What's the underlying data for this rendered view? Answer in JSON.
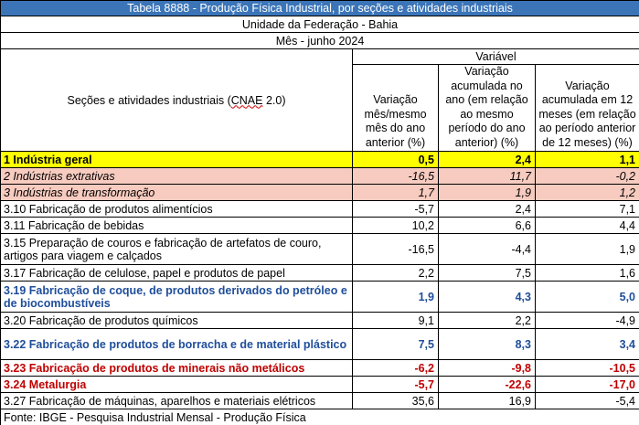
{
  "table": {
    "title": "Tabela 8888 - Produção Física Industrial, por seções e atividades industriais",
    "unit": "Unidade da Federação - Bahia",
    "period": "Mês - junho 2024",
    "row_header": "Seções e atividades industriais (",
    "row_header_abbr": "CNAE",
    "row_header_tail": " 2.0)",
    "variable_label": "Variável",
    "columns": [
      "Variação mês/mesmo mês do ano anterior (%)",
      "Variação acumulada no ano (em relação ao mesmo período do ano anterior) (%)",
      "Variação acumulada em 12 meses (em relação ao período anterior de 12 meses) (%)"
    ],
    "rows": [
      {
        "label": "1 Indústria geral",
        "values": [
          "0,5",
          "2,4",
          "1,1"
        ],
        "style": "geral"
      },
      {
        "label": "2 Indústrias extrativas",
        "values": [
          "-16,5",
          "11,7",
          "-0,2"
        ],
        "style": "pink"
      },
      {
        "label": "3 Indústrias de transformação",
        "values": [
          "1,7",
          "1,9",
          "1,2"
        ],
        "style": "pink"
      },
      {
        "label": "3.10 Fabricação de produtos alimentícios",
        "values": [
          "-5,7",
          "2,4",
          "7,1"
        ],
        "style": "normal"
      },
      {
        "label": "3.11 Fabricação de bebidas",
        "values": [
          "10,2",
          "6,6",
          "4,4"
        ],
        "style": "normal"
      },
      {
        "label": "3.15 Preparação de couros e fabricação de artefatos de couro, artigos para viagem e calçados",
        "values": [
          "-16,5",
          "-4,4",
          "1,9"
        ],
        "style": "normal-tall"
      },
      {
        "label": "3.17 Fabricação de celulose, papel e produtos de papel",
        "values": [
          "2,2",
          "7,5",
          "1,6"
        ],
        "style": "normal"
      },
      {
        "label": "3.19 Fabricação de coque, de produtos derivados do petróleo e de biocombustíveis",
        "values": [
          "1,9",
          "4,3",
          "5,0"
        ],
        "style": "blue-tall"
      },
      {
        "label": "3.20 Fabricação de produtos químicos",
        "values": [
          "9,1",
          "2,2",
          "-4,9"
        ],
        "style": "normal"
      },
      {
        "label": "3.22 Fabricação de produtos de borracha e de material plástico",
        "values": [
          "7,5",
          "8,3",
          "3,4"
        ],
        "style": "blue-tall"
      },
      {
        "label": "3.23 Fabricação de produtos de minerais não metálicos",
        "values": [
          "-6,2",
          "-9,8",
          "-10,5"
        ],
        "style": "red"
      },
      {
        "label": "3.24 Metalurgia",
        "values": [
          "-5,7",
          "-22,6",
          "-17,0"
        ],
        "style": "red"
      },
      {
        "label": "3.27 Fabricação de máquinas, aparelhos e materiais elétricos",
        "values": [
          "35,6",
          "16,9",
          "-5,4"
        ],
        "style": "normal"
      }
    ],
    "footer": "Fonte: IBGE - Pesquisa Industrial Mensal - Produção Física",
    "colors": {
      "title_bg": "#3b75b8",
      "highlight": "#ffff00",
      "pink": "#f7cbbf",
      "blue_text": "#1f4e9a",
      "red_text": "#c00000"
    }
  }
}
